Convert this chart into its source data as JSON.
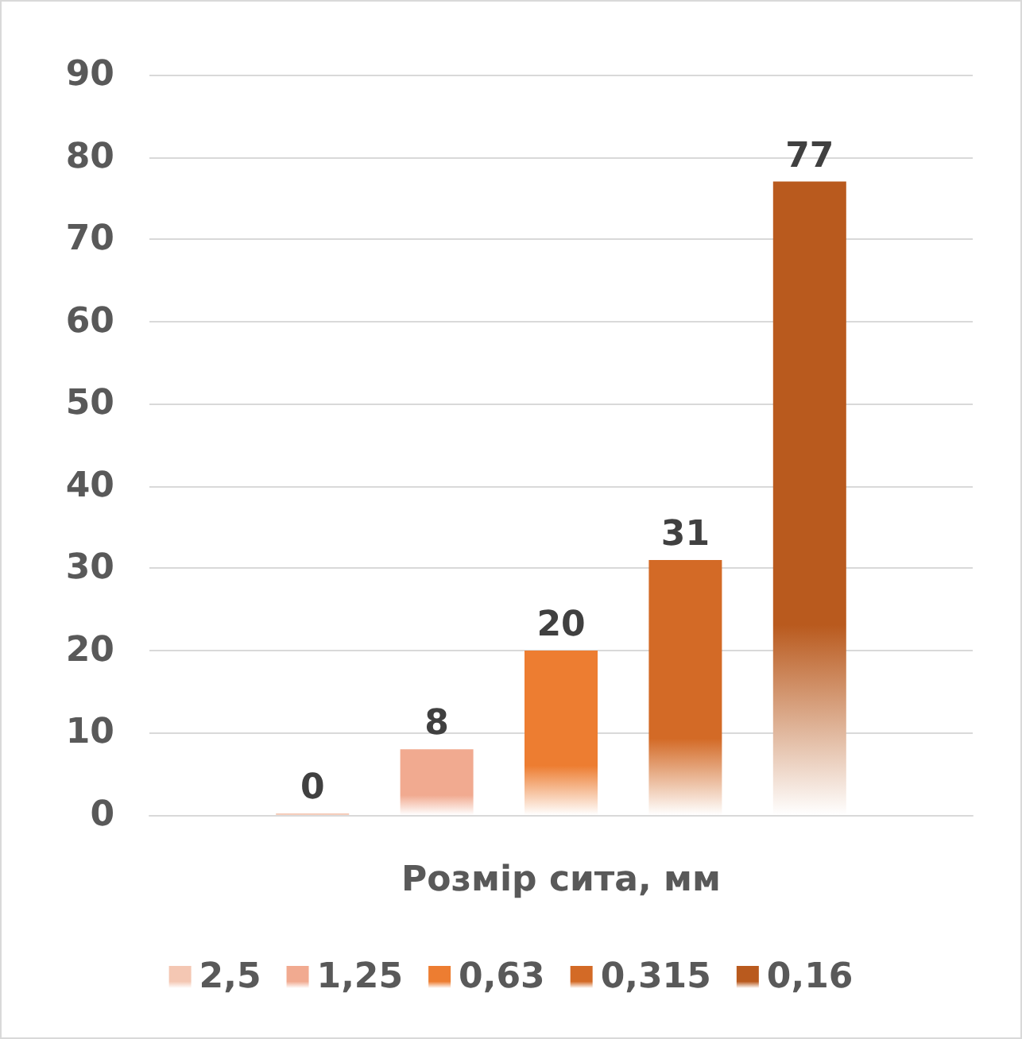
{
  "chart_data": {
    "type": "bar",
    "xlabel": "Розмір сита, мм",
    "categories": [
      null
    ],
    "series": [
      {
        "name": "2,5",
        "color": "#f4c7b3",
        "values": [
          0
        ]
      },
      {
        "name": "1,25",
        "color": "#f1aa90",
        "values": [
          8
        ]
      },
      {
        "name": "0,63",
        "color": "#ed7d31",
        "values": [
          20
        ]
      },
      {
        "name": "0,315",
        "color": "#d36a26",
        "values": [
          31
        ]
      },
      {
        "name": "0,16",
        "color": "#b95a1e",
        "values": [
          77
        ]
      }
    ],
    "ylim": [
      0,
      90
    ],
    "yticks": [
      0,
      10,
      20,
      30,
      40,
      50,
      60,
      70,
      80,
      90
    ],
    "grid": "y",
    "legend": "bottom",
    "data_labels": true
  }
}
